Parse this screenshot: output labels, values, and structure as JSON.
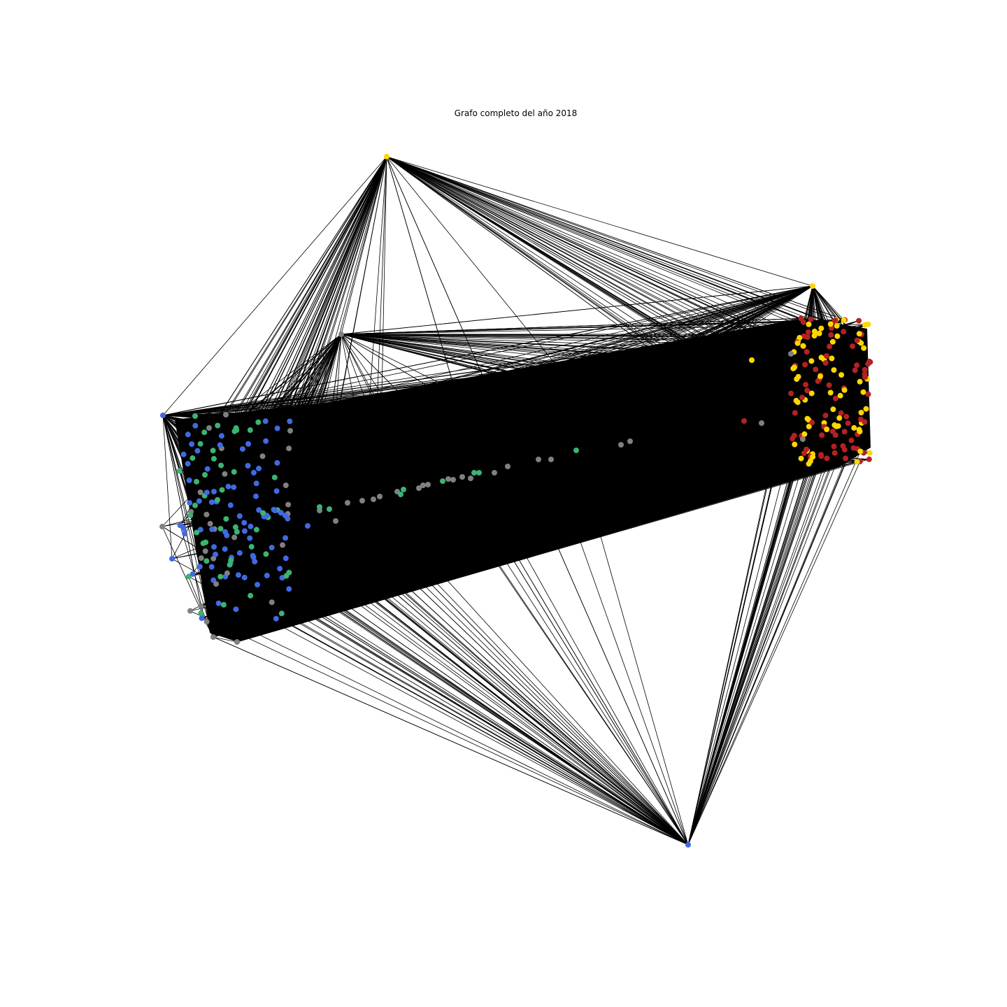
{
  "title": "Grafo completo del año 2018",
  "edge_color": "#000000",
  "background_color": "#ffffff",
  "node_colors": {
    "blue": "#4169e1",
    "green": "#3cb371",
    "gray": "#808080",
    "yellow": "#ffd700",
    "red": "#b22222"
  },
  "graph_description_shown": "network graph with dense black edges and colored nodes"
}
